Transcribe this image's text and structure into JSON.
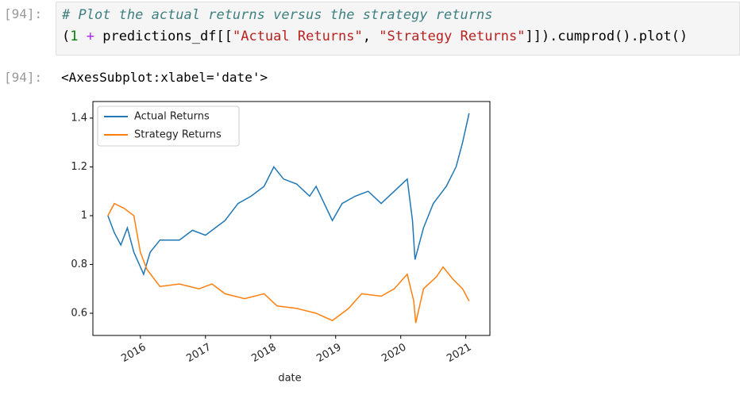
{
  "input_cell": {
    "prompt": "[94]:",
    "code_lines": [
      [
        "# Plot the actual returns versus the strategy returns"
      ],
      [
        "(",
        "1",
        " + ",
        "predictions_df[[",
        "\"Actual Returns\"",
        ", ",
        "\"Strategy Returns\"",
        "]]).cumprod().plot()"
      ]
    ]
  },
  "output_cell": {
    "prompt": "[94]:",
    "text": "<AxesSubplot:xlabel='date'>"
  },
  "chart_data": {
    "type": "line",
    "xlabel": "date",
    "legend": "upper left",
    "grid": false,
    "xlim": [
      2015.27,
      2021.37
    ],
    "xticks": [
      2016,
      2017,
      2018,
      2019,
      2020,
      2021
    ],
    "ylim": [
      0.509,
      1.468
    ],
    "yticks": [
      0.6,
      0.8,
      1.0,
      1.2,
      1.4
    ],
    "series": [
      {
        "name": "Actual Returns",
        "color": "#1f77b4",
        "x": [
          2015.5,
          2015.6,
          2015.7,
          2015.8,
          2015.9,
          2016.05,
          2016.15,
          2016.3,
          2016.6,
          2016.8,
          2017.0,
          2017.3,
          2017.5,
          2017.7,
          2017.9,
          2018.05,
          2018.2,
          2018.4,
          2018.6,
          2018.7,
          2018.95,
          2019.1,
          2019.3,
          2019.5,
          2019.7,
          2019.9,
          2020.1,
          2020.18,
          2020.22,
          2020.35,
          2020.5,
          2020.7,
          2020.85,
          2020.95,
          2021.05
        ],
        "values": [
          1.0,
          0.93,
          0.88,
          0.95,
          0.85,
          0.76,
          0.85,
          0.9,
          0.9,
          0.94,
          0.92,
          0.98,
          1.05,
          1.08,
          1.12,
          1.2,
          1.15,
          1.13,
          1.08,
          1.12,
          0.98,
          1.05,
          1.08,
          1.1,
          1.05,
          1.1,
          1.15,
          0.98,
          0.82,
          0.95,
          1.05,
          1.12,
          1.2,
          1.3,
          1.42
        ]
      },
      {
        "name": "Strategy Returns",
        "color": "#ff7f0e",
        "x": [
          2015.5,
          2015.6,
          2015.75,
          2015.9,
          2016.0,
          2016.1,
          2016.3,
          2016.6,
          2016.9,
          2017.1,
          2017.3,
          2017.6,
          2017.9,
          2018.1,
          2018.4,
          2018.7,
          2018.95,
          2019.2,
          2019.4,
          2019.7,
          2019.9,
          2020.1,
          2020.2,
          2020.23,
          2020.35,
          2020.55,
          2020.65,
          2020.8,
          2020.95,
          2021.05
        ],
        "values": [
          1.0,
          1.05,
          1.03,
          1.0,
          0.85,
          0.78,
          0.71,
          0.72,
          0.7,
          0.72,
          0.68,
          0.66,
          0.68,
          0.63,
          0.62,
          0.6,
          0.57,
          0.62,
          0.68,
          0.67,
          0.7,
          0.76,
          0.65,
          0.56,
          0.7,
          0.75,
          0.79,
          0.74,
          0.7,
          0.65
        ]
      }
    ]
  }
}
